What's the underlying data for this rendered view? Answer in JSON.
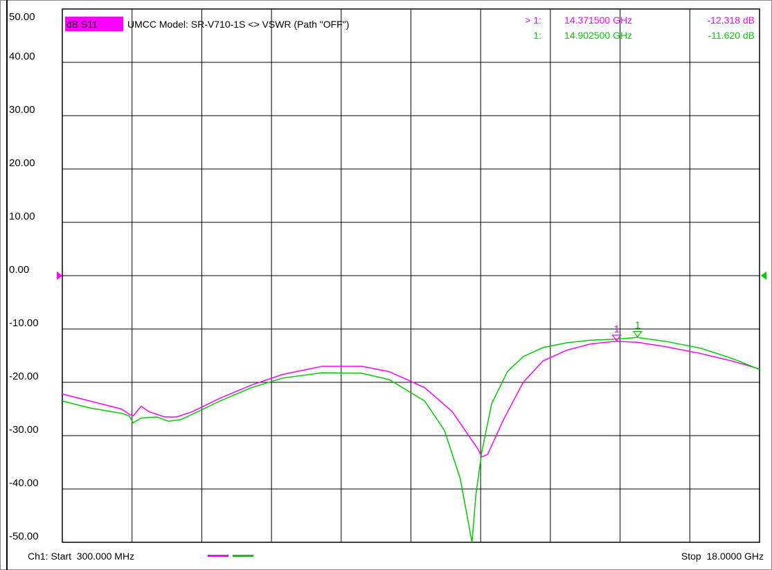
{
  "window": {
    "title": "dB S11",
    "subtitle": "UMCC Model: SR-V710-1S <> VSWR  (Path \"OFF\")"
  },
  "markers": [
    {
      "prefix": "> 1:",
      "freq": "14.371500 GHz",
      "value": "-12.318 dB",
      "color": "#ff00ff"
    },
    {
      "prefix": "1:",
      "freq": "14.902500 GHz",
      "value": "-11.620 dB",
      "color": "#00cc00"
    }
  ],
  "footer": {
    "start": "Ch1: Start  300.000 MHz",
    "stop": "Stop  18.0000 GHz"
  },
  "colors": {
    "trace1": "#ff00ff",
    "trace2": "#00cc00",
    "grid": "#000000",
    "title_bg": "#ff00ff"
  },
  "chart_data": {
    "type": "line",
    "title": "dB S11",
    "subtitle": "UMCC Model: SR-V710-1S <> VSWR  (Path \"OFF\")",
    "xlabel": "",
    "ylabel": "",
    "xlim": [
      0.3,
      18.0
    ],
    "ylim": [
      -50,
      50
    ],
    "yticks": [
      "50.00",
      "40.00",
      "30.00",
      "20.00",
      "10.00",
      "0.00",
      "-10.00",
      "-20.00",
      "-30.00",
      "-40.00",
      "-50.00"
    ],
    "reference_level": 0,
    "grid": true,
    "series": [
      {
        "color": "#ff00ff",
        "x": [
          0.3,
          1.0,
          1.8,
          2.0,
          2.1,
          2.3,
          2.5,
          2.9,
          3.2,
          3.6,
          4.3,
          5.1,
          5.9,
          6.9,
          7.9,
          8.6,
          9.5,
          10.2,
          10.85,
          10.95,
          11.1,
          11.5,
          12.0,
          12.5,
          13.1,
          13.7,
          14.37,
          14.9,
          15.6,
          16.5,
          17.3,
          18.0
        ],
        "y": [
          -22.2,
          -23.5,
          -25.0,
          -26.0,
          -26.3,
          -24.5,
          -25.5,
          -26.5,
          -26.5,
          -25.5,
          -23.0,
          -20.5,
          -18.5,
          -17.0,
          -17.0,
          -18.0,
          -21.0,
          -25.5,
          -32.5,
          -34.0,
          -33.5,
          -27.0,
          -20.0,
          -16.0,
          -14.0,
          -12.8,
          -12.3,
          -12.5,
          -13.3,
          -14.6,
          -16.0,
          -17.5
        ]
      },
      {
        "color": "#00cc00",
        "x": [
          0.3,
          1.0,
          1.8,
          2.0,
          2.1,
          2.3,
          2.7,
          3.0,
          3.3,
          3.6,
          4.3,
          5.1,
          5.9,
          6.9,
          7.9,
          8.6,
          9.5,
          10.0,
          10.4,
          10.6,
          10.7,
          10.8,
          10.95,
          11.2,
          11.6,
          12.0,
          12.5,
          13.1,
          13.7,
          14.37,
          14.9,
          15.6,
          16.5,
          17.3,
          18.0
        ],
        "y": [
          -23.5,
          -24.8,
          -25.8,
          -26.3,
          -27.6,
          -26.7,
          -26.5,
          -27.3,
          -27.0,
          -26.0,
          -23.5,
          -21.0,
          -19.2,
          -18.2,
          -18.3,
          -19.5,
          -23.5,
          -29.0,
          -38.0,
          -46.0,
          -50.0,
          -41.0,
          -33.0,
          -24.0,
          -18.0,
          -15.2,
          -13.5,
          -12.6,
          -12.1,
          -11.9,
          -11.6,
          -12.3,
          -13.6,
          -15.5,
          -17.6
        ]
      }
    ],
    "marker_points": [
      {
        "label": "1",
        "x": 14.3715,
        "y": -12.318,
        "color": "#ff00ff"
      },
      {
        "label": "1",
        "x": 14.9025,
        "y": -11.62,
        "color": "#00cc00"
      }
    ]
  }
}
